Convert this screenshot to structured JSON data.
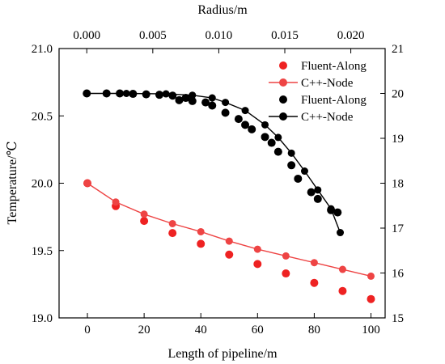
{
  "chart_data": {
    "type": "scatter",
    "x_bottom": {
      "label": "Length of pipeline/m",
      "range": [
        -10,
        105
      ],
      "ticks": [
        0,
        20,
        40,
        60,
        80,
        100
      ],
      "tick_labels": [
        "0",
        "20",
        "40",
        "60",
        "80",
        "100"
      ]
    },
    "x_top": {
      "label": "Radius/m",
      "range": [
        -0.0021,
        0.0226
      ],
      "ticks": [
        0.0,
        0.005,
        0.01,
        0.015,
        0.02
      ],
      "tick_labels": [
        "0.000",
        "0.005",
        "0.010",
        "0.015",
        "0.020"
      ]
    },
    "y_left": {
      "label": "Temperature/℃",
      "range": [
        19.0,
        21.0
      ],
      "ticks": [
        19.0,
        19.5,
        20.0,
        20.5,
        21.0
      ],
      "tick_labels": [
        "19.0",
        "19.5",
        "20.0",
        "20.5",
        "21.0"
      ]
    },
    "y_right": {
      "label": "",
      "range": [
        15,
        21
      ],
      "ticks": [
        15,
        16,
        17,
        18,
        19,
        20,
        21
      ],
      "tick_labels": [
        "15",
        "16",
        "17",
        "18",
        "19",
        "20",
        "21"
      ]
    },
    "legend_position": "top-right",
    "grid": false,
    "series": [
      {
        "name": "Fluent-Along",
        "type": "scatter",
        "axes": [
          "x_bottom",
          "y_left"
        ],
        "color": "#ee2222",
        "x": [
          0,
          10,
          20,
          30,
          40,
          50,
          60,
          70,
          80,
          90,
          100
        ],
        "y": [
          20.0,
          19.83,
          19.72,
          19.63,
          19.55,
          19.47,
          19.4,
          19.33,
          19.26,
          19.2,
          19.14
        ]
      },
      {
        "name": "C++-Node",
        "type": "line",
        "axes": [
          "x_bottom",
          "y_left"
        ],
        "color": "#ee4444",
        "x": [
          0,
          10,
          20,
          30,
          40,
          50,
          60,
          70,
          80,
          90,
          100
        ],
        "y": [
          20.0,
          19.86,
          19.77,
          19.7,
          19.64,
          19.57,
          19.51,
          19.46,
          19.41,
          19.36,
          19.31
        ]
      },
      {
        "name": "Fluent-Along",
        "type": "scatter",
        "axes": [
          "x_top",
          "y_right"
        ],
        "color": "#000000",
        "x": [
          0.0,
          0.0015,
          0.0025,
          0.0035,
          0.0045,
          0.0055,
          0.0065,
          0.0075,
          0.007,
          0.008,
          0.009,
          0.0095,
          0.0105,
          0.0115,
          0.012,
          0.0125,
          0.0135,
          0.014,
          0.0145,
          0.0155,
          0.016,
          0.017,
          0.0175,
          0.0185,
          0.019
        ],
        "y": [
          20.0,
          20.0,
          20.0,
          19.99,
          19.98,
          19.97,
          19.95,
          19.9,
          19.85,
          19.83,
          19.8,
          19.73,
          19.57,
          19.43,
          19.3,
          19.2,
          19.03,
          18.9,
          18.7,
          18.4,
          18.1,
          17.8,
          17.65,
          17.4,
          17.35
        ]
      },
      {
        "name": "C++-Node",
        "type": "line",
        "axes": [
          "x_top",
          "y_right"
        ],
        "color": "#000000",
        "x": [
          0.0,
          0.003,
          0.006,
          0.008,
          0.0095,
          0.0105,
          0.012,
          0.0135,
          0.0145,
          0.0155,
          0.0165,
          0.0175,
          0.0185,
          0.0192
        ],
        "y": [
          20.0,
          20.0,
          19.99,
          19.96,
          19.9,
          19.8,
          19.62,
          19.3,
          19.02,
          18.67,
          18.27,
          17.85,
          17.43,
          16.9
        ]
      }
    ]
  }
}
